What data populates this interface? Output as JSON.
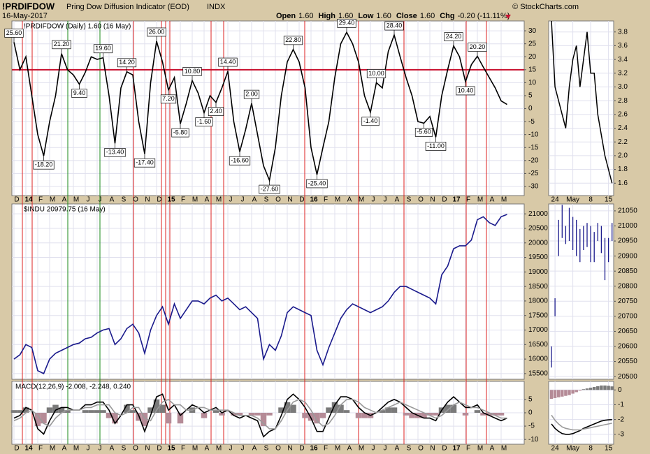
{
  "header": {
    "symbol": "!PRDIFDOW",
    "name": "Pring Dow Diffusion Indicator (EOD)",
    "exchange": "INDX",
    "date": "16-May-2017",
    "copyright": "© StockCharts.com",
    "quote": [
      [
        "Open",
        "1.60"
      ],
      [
        "High",
        "1.60"
      ],
      [
        "Low",
        "1.60"
      ],
      [
        "Close",
        "1.60"
      ],
      [
        "Chg",
        "-0.20 (-11.11%)"
      ]
    ]
  },
  "chart_data": [
    {
      "type": "line",
      "title": "!PRDIFDOW (Daily) 1.60 (16 May)",
      "color": "#000000",
      "categories": [
        "D",
        null,
        "14",
        null,
        "F",
        null,
        "M",
        null,
        "A",
        null,
        "M",
        null,
        "J",
        null,
        "J",
        null,
        "A",
        null,
        "S",
        null,
        "O",
        null,
        "N",
        null,
        "D",
        null,
        "15",
        null,
        "F",
        null,
        "M",
        null,
        "A",
        null,
        "M",
        null,
        "J",
        null,
        "J",
        null,
        "A",
        null,
        "S",
        null,
        "O",
        null,
        "N",
        null,
        "D",
        null,
        "16",
        null,
        "F",
        null,
        "M",
        null,
        "A",
        null,
        "M",
        null,
        "J",
        null,
        "J",
        null,
        "A",
        null,
        "S",
        null,
        "O",
        null,
        "N",
        null,
        "D",
        null,
        "17",
        null,
        "F",
        null,
        "M",
        null,
        "A",
        null,
        "M",
        null
      ],
      "values": [
        25.6,
        15,
        20,
        5,
        -10,
        -18.2,
        -5,
        5,
        21.2,
        15,
        13,
        9.4,
        14,
        20,
        19,
        19.6,
        5,
        -13.4,
        8,
        14.2,
        13,
        -5,
        -17.4,
        10,
        26,
        18,
        7.2,
        12,
        -5.8,
        2,
        10.8,
        6,
        -1.6,
        5,
        2.4,
        8,
        14.4,
        -5,
        -16.6,
        -8,
        2,
        -10,
        -22,
        -27.6,
        -15,
        5,
        18,
        22.8,
        18,
        8,
        -15,
        -25.4,
        -15,
        -5,
        12,
        25,
        29.4,
        25,
        18,
        5,
        -1.4,
        10,
        8,
        22,
        28.4,
        20,
        12,
        5,
        -5,
        -5.6,
        -3,
        -11,
        5,
        15,
        24.2,
        20,
        10.4,
        17,
        20.2,
        16,
        12,
        8,
        3,
        1.6
      ],
      "value_labels": [
        "25.60",
        null,
        null,
        null,
        null,
        "-18.20",
        null,
        null,
        "21.20",
        null,
        null,
        "9.40",
        null,
        null,
        null,
        "19.60",
        null,
        "-13.40",
        null,
        "14.20",
        null,
        null,
        "-17.40",
        null,
        "26.00",
        null,
        "7.20",
        null,
        "-5.80",
        null,
        "10.80",
        null,
        "-1.60",
        null,
        "2.40",
        null,
        "14.40",
        null,
        "-16.60",
        null,
        "2.00",
        null,
        null,
        "-27.60",
        null,
        null,
        null,
        "22.80",
        null,
        null,
        null,
        "-25.40",
        null,
        null,
        null,
        null,
        "29.40",
        null,
        null,
        null,
        "-1.40",
        "10.00",
        null,
        null,
        "28.40",
        null,
        null,
        null,
        null,
        "-5.60",
        null,
        "-11.00",
        null,
        null,
        "24.20",
        null,
        "10.40",
        null,
        "20.20",
        null,
        null,
        null,
        null,
        null
      ],
      "reference_line": {
        "value": 15,
        "color": "#c8102e"
      },
      "ylim": [
        -33.5,
        33.8
      ],
      "yticks": [
        30,
        25,
        20,
        15,
        10,
        5,
        0,
        -5,
        -10,
        -15,
        -20,
        -25,
        -30
      ],
      "grid": true
    },
    {
      "type": "line",
      "title": "$INDU 20979.75 (16 May)",
      "color": "#1a1a8c",
      "values": [
        16000,
        16150,
        16500,
        16400,
        15600,
        15500,
        16000,
        16200,
        16300,
        16400,
        16500,
        16550,
        16700,
        16750,
        16900,
        17000,
        17050,
        16500,
        16700,
        17050,
        17200,
        16900,
        16200,
        17000,
        17500,
        17800,
        17200,
        17900,
        17400,
        17700,
        18000,
        18000,
        17900,
        18100,
        18200,
        18000,
        18100,
        17900,
        17700,
        17800,
        17600,
        17400,
        16000,
        16500,
        16300,
        16800,
        17600,
        17800,
        17700,
        17600,
        17500,
        16300,
        15800,
        16400,
        16900,
        17400,
        17700,
        17900,
        17800,
        17700,
        17600,
        17700,
        17800,
        18000,
        18300,
        18500,
        18500,
        18400,
        18300,
        18200,
        18100,
        17900,
        18900,
        19200,
        19800,
        19900,
        19900,
        20100,
        20800,
        20900,
        20700,
        20600,
        20900,
        20980
      ],
      "ylim": [
        15305,
        21341
      ],
      "yticks": [
        21000,
        20500,
        20000,
        19500,
        19000,
        18500,
        18000,
        17500,
        17000,
        16500,
        16000,
        15500
      ],
      "grid": true
    },
    {
      "type": "macd",
      "title": "MACD(12,26,9) -2.008, -2.248, 0.240",
      "categories": [
        "D",
        null,
        "14",
        null,
        "F",
        null,
        "M",
        null,
        "A",
        null,
        "M",
        null,
        "J",
        null,
        "J",
        null,
        "A",
        null,
        "S",
        null,
        "O",
        null,
        "N",
        null,
        "D",
        null,
        "15",
        null,
        "F",
        null,
        "M",
        null,
        "A",
        null,
        "M",
        null,
        "J",
        null,
        "J",
        null,
        "A",
        null,
        "S",
        null,
        "O",
        null,
        "N",
        null,
        "D",
        null,
        "16",
        null,
        "F",
        null,
        "M",
        null,
        "A",
        null,
        "M",
        null,
        "J",
        null,
        "J",
        null,
        "A",
        null,
        "S",
        null,
        "O",
        null,
        "N",
        null,
        "D",
        null,
        "17",
        null,
        "F",
        null,
        "M",
        null,
        "A",
        null,
        "M",
        null
      ],
      "series": [
        {
          "type": "bar",
          "color": "#7a7a7a",
          "negative_color": "#b58b97",
          "values": [
            1,
            1,
            2,
            0,
            -5,
            -4,
            2,
            3,
            2,
            1,
            0,
            0,
            1,
            1,
            1,
            1,
            -2,
            -4,
            0,
            3,
            1,
            -3,
            -5,
            2,
            5,
            3,
            -4,
            0,
            -4,
            0,
            2,
            0,
            -2,
            0,
            1,
            -1,
            0,
            -1,
            -1,
            0,
            -1,
            -1,
            -5,
            -1,
            0,
            2,
            4,
            3,
            0,
            -2,
            -3,
            -4,
            -2,
            2,
            4,
            3,
            1,
            0,
            -2,
            -2,
            -2,
            0,
            1,
            2,
            2,
            0,
            -1,
            -2,
            -2,
            -2,
            -1,
            -1,
            2,
            3,
            3,
            0,
            -1,
            0,
            1,
            -1,
            -1,
            -1,
            -1,
            0
          ]
        },
        {
          "type": "line",
          "color": "#000000",
          "values": [
            -2,
            -1,
            2,
            1,
            -6,
            -8,
            -3,
            1,
            2,
            2,
            1,
            1,
            3,
            3,
            4,
            4,
            1,
            -4,
            -1,
            3,
            3,
            -1,
            -7,
            -1,
            6,
            7,
            1,
            3,
            -1,
            1,
            3,
            2,
            0,
            1,
            2,
            0,
            1,
            -1,
            -2,
            -1,
            -2,
            -3,
            -9,
            -7,
            -6,
            -1,
            5,
            7,
            5,
            2,
            -2,
            -7,
            -7,
            -2,
            3,
            6,
            6,
            5,
            2,
            0,
            -1,
            0,
            2,
            4,
            5,
            4,
            2,
            0,
            -1,
            -2,
            -2,
            -3,
            1,
            4,
            6,
            4,
            2,
            2,
            3,
            0,
            -1,
            -2,
            -3,
            -2
          ]
        },
        {
          "type": "line",
          "color": "#9a9a9a",
          "values": [
            -3,
            -2,
            0,
            1,
            -1,
            -4,
            -5,
            -2,
            0,
            1,
            1,
            1,
            2,
            2,
            3,
            3,
            3,
            0,
            -1,
            0,
            2,
            2,
            -2,
            -3,
            1,
            4,
            5,
            3,
            3,
            1,
            1,
            2,
            2,
            1,
            1,
            1,
            1,
            0,
            -1,
            -1,
            -1,
            -2,
            -4,
            -6,
            -6,
            -3,
            1,
            4,
            5,
            4,
            1,
            -3,
            -5,
            -4,
            -1,
            3,
            5,
            5,
            4,
            2,
            1,
            0,
            1,
            2,
            3,
            4,
            3,
            2,
            1,
            0,
            -1,
            -2,
            -1,
            1,
            3,
            4,
            3,
            2,
            2,
            1,
            0,
            -1,
            -2,
            -2
          ]
        }
      ],
      "ylim": [
        -11.8,
        11.8
      ],
      "yticks": [
        5,
        0,
        -5,
        -10
      ],
      "grid": true
    },
    {
      "type": "line",
      "color": "#000000",
      "categories": [
        null,
        "24",
        null,
        null,
        null,
        null,
        "May",
        null,
        null,
        null,
        null,
        "8",
        null,
        null,
        null,
        null,
        "15",
        null
      ],
      "values": [
        3.96,
        3.0,
        2.8,
        2.6,
        2.4,
        3.0,
        3.4,
        3.6,
        3.0,
        3.4,
        3.8,
        3.2,
        3.2,
        2.6,
        2.3,
        2.0,
        1.8,
        1.6
      ],
      "ylim": [
        1.42,
        3.96
      ],
      "yticks": [
        3.8,
        3.6,
        3.4,
        3.2,
        {
          "value": 3,
          "label": "3.0"
        },
        2.8,
        2.6,
        2.4,
        2.2,
        {
          "value": 2,
          "label": "2.0"
        },
        1.8,
        1.6
      ],
      "grid": true
    },
    {
      "type": "hilo",
      "color": "#1a1a8c",
      "high": [
        20600,
        20760,
        21020,
        21070,
        21000,
        21060,
        21030,
        21020,
        20990,
        21000,
        21010,
        21000,
        20980,
        21010,
        21000,
        20960,
        20960,
        21010
      ],
      "low": [
        20530,
        20700,
        20900,
        20960,
        20940,
        20950,
        20920,
        20900,
        20880,
        20920,
        20930,
        20880,
        20880,
        20950,
        20910,
        20820,
        20880,
        20950
      ],
      "ylim": [
        20491,
        21073
      ],
      "yticks": [
        21050,
        21000,
        20950,
        20900,
        20850,
        20800,
        20750,
        20700,
        20650,
        20600,
        20550,
        20500
      ],
      "grid": true
    },
    {
      "type": "macd",
      "categories": [
        null,
        "24",
        null,
        null,
        null,
        null,
        "May",
        null,
        null,
        null,
        null,
        "8",
        null,
        null,
        null,
        null,
        "15",
        null
      ],
      "series": [
        {
          "type": "bar",
          "color": "#7a7a7a",
          "negative_color": "#b58b97",
          "values": [
            -0.6,
            -0.55,
            -0.5,
            -0.45,
            -0.4,
            -0.35,
            -0.25,
            -0.15,
            -0.05,
            0.05,
            0.1,
            0.15,
            0.2,
            0.25,
            0.3,
            0.3,
            0.28,
            0.24
          ]
        },
        {
          "type": "line",
          "color": "#000000",
          "values": [
            -2.3,
            -2.6,
            -2.8,
            -2.95,
            -3.0,
            -3.0,
            -2.95,
            -2.85,
            -2.75,
            -2.6,
            -2.5,
            -2.4,
            -2.3,
            -2.2,
            -2.1,
            -2.05,
            -2.02,
            -2.008
          ]
        },
        {
          "type": "line",
          "color": "#9a9a9a",
          "values": [
            -1.7,
            -2.05,
            -2.3,
            -2.5,
            -2.6,
            -2.65,
            -2.7,
            -2.7,
            -2.7,
            -2.65,
            -2.6,
            -2.55,
            -2.5,
            -2.45,
            -2.4,
            -2.35,
            -2.3,
            -2.248
          ]
        }
      ],
      "ylim": [
        -3.67,
        0.58
      ],
      "yticks": [
        0,
        -1,
        -2,
        -3
      ],
      "grid": true
    }
  ]
}
